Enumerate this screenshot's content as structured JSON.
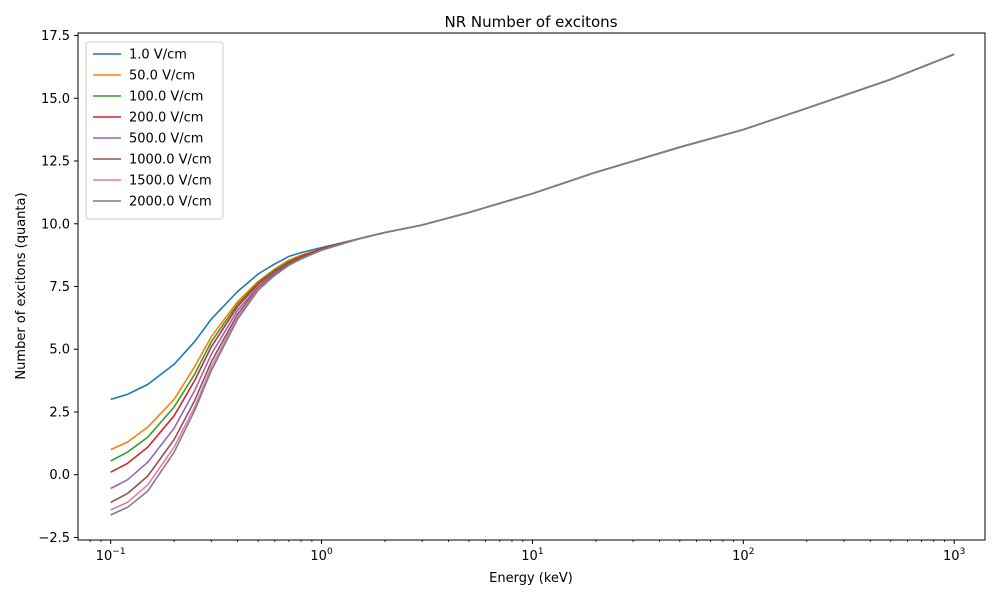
{
  "chart_data": {
    "type": "line",
    "title": "NR Number of excitons",
    "xlabel": "Energy (keV)",
    "ylabel": "Number of excitons (quanta)",
    "xscale": "log",
    "xlim": [
      0.07,
      1400
    ],
    "ylim": [
      -2.6,
      17.6
    ],
    "xticks": [
      0.1,
      1,
      10,
      100,
      1000
    ],
    "xtick_labels": [
      {
        "base": "10",
        "exp": "−1"
      },
      {
        "base": "10",
        "exp": "0"
      },
      {
        "base": "10",
        "exp": "1"
      },
      {
        "base": "10",
        "exp": "2"
      },
      {
        "base": "10",
        "exp": "3"
      }
    ],
    "yticks": [
      -2.5,
      0.0,
      2.5,
      5.0,
      7.5,
      10.0,
      12.5,
      15.0,
      17.5
    ],
    "ytick_labels": [
      "−2.5",
      "0.0",
      "2.5",
      "5.0",
      "7.5",
      "10.0",
      "12.5",
      "15.0",
      "17.5"
    ],
    "grid": false,
    "legend_position": "top-left",
    "x": [
      0.1,
      0.12,
      0.15,
      0.2,
      0.25,
      0.3,
      0.4,
      0.5,
      0.6,
      0.7,
      0.8,
      1.0,
      1.5,
      2,
      3,
      5,
      10,
      20,
      50,
      100,
      200,
      500,
      1000
    ],
    "series": [
      {
        "name": "1.0 V/cm",
        "color": "#1f77b4",
        "values": [
          3.0,
          3.2,
          3.6,
          4.4,
          5.3,
          6.2,
          7.3,
          8.0,
          8.4,
          8.7,
          8.85,
          9.05,
          9.4,
          9.65,
          9.95,
          10.45,
          11.2,
          12.05,
          13.05,
          13.75,
          14.6,
          15.75,
          16.75
        ]
      },
      {
        "name": "50.0 V/cm",
        "color": "#ff7f0e",
        "values": [
          1.0,
          1.3,
          1.9,
          3.0,
          4.3,
          5.5,
          6.9,
          7.7,
          8.2,
          8.55,
          8.75,
          9.0,
          9.4,
          9.65,
          9.95,
          10.45,
          11.2,
          12.05,
          13.05,
          13.75,
          14.6,
          15.75,
          16.75
        ]
      },
      {
        "name": "100.0 V/cm",
        "color": "#2ca02c",
        "values": [
          0.55,
          0.9,
          1.5,
          2.7,
          4.0,
          5.3,
          6.8,
          7.65,
          8.15,
          8.5,
          8.7,
          9.0,
          9.4,
          9.65,
          9.95,
          10.45,
          11.2,
          12.05,
          13.05,
          13.75,
          14.6,
          15.75,
          16.75
        ]
      },
      {
        "name": "200.0 V/cm",
        "color": "#d62728",
        "values": [
          0.1,
          0.45,
          1.1,
          2.35,
          3.75,
          5.1,
          6.7,
          7.6,
          8.1,
          8.45,
          8.7,
          9.0,
          9.4,
          9.65,
          9.95,
          10.45,
          11.2,
          12.05,
          13.05,
          13.75,
          14.6,
          15.75,
          16.75
        ]
      },
      {
        "name": "500.0 V/cm",
        "color": "#9467bd",
        "values": [
          -0.55,
          -0.2,
          0.5,
          1.85,
          3.35,
          4.8,
          6.55,
          7.5,
          8.05,
          8.4,
          8.65,
          8.95,
          9.4,
          9.65,
          9.95,
          10.45,
          11.2,
          12.05,
          13.05,
          13.75,
          14.6,
          15.75,
          16.75
        ]
      },
      {
        "name": "1000.0 V/cm",
        "color": "#8c564b",
        "values": [
          -1.1,
          -0.75,
          -0.05,
          1.4,
          2.95,
          4.5,
          6.4,
          7.45,
          8.0,
          8.4,
          8.65,
          8.95,
          9.4,
          9.65,
          9.95,
          10.45,
          11.2,
          12.05,
          13.05,
          13.75,
          14.6,
          15.75,
          16.75
        ]
      },
      {
        "name": "1500.0 V/cm",
        "color": "#e377c2",
        "values": [
          -1.4,
          -1.1,
          -0.4,
          1.1,
          2.7,
          4.3,
          6.3,
          7.4,
          7.95,
          8.35,
          8.6,
          8.95,
          9.4,
          9.65,
          9.95,
          10.45,
          11.2,
          12.05,
          13.05,
          13.75,
          14.6,
          15.75,
          16.75
        ]
      },
      {
        "name": "2000.0 V/cm",
        "color": "#7f7f7f",
        "values": [
          -1.6,
          -1.3,
          -0.65,
          0.9,
          2.55,
          4.15,
          6.2,
          7.35,
          7.95,
          8.35,
          8.6,
          8.95,
          9.4,
          9.65,
          9.95,
          10.45,
          11.2,
          12.05,
          13.05,
          13.75,
          14.6,
          15.75,
          16.75
        ]
      }
    ]
  }
}
